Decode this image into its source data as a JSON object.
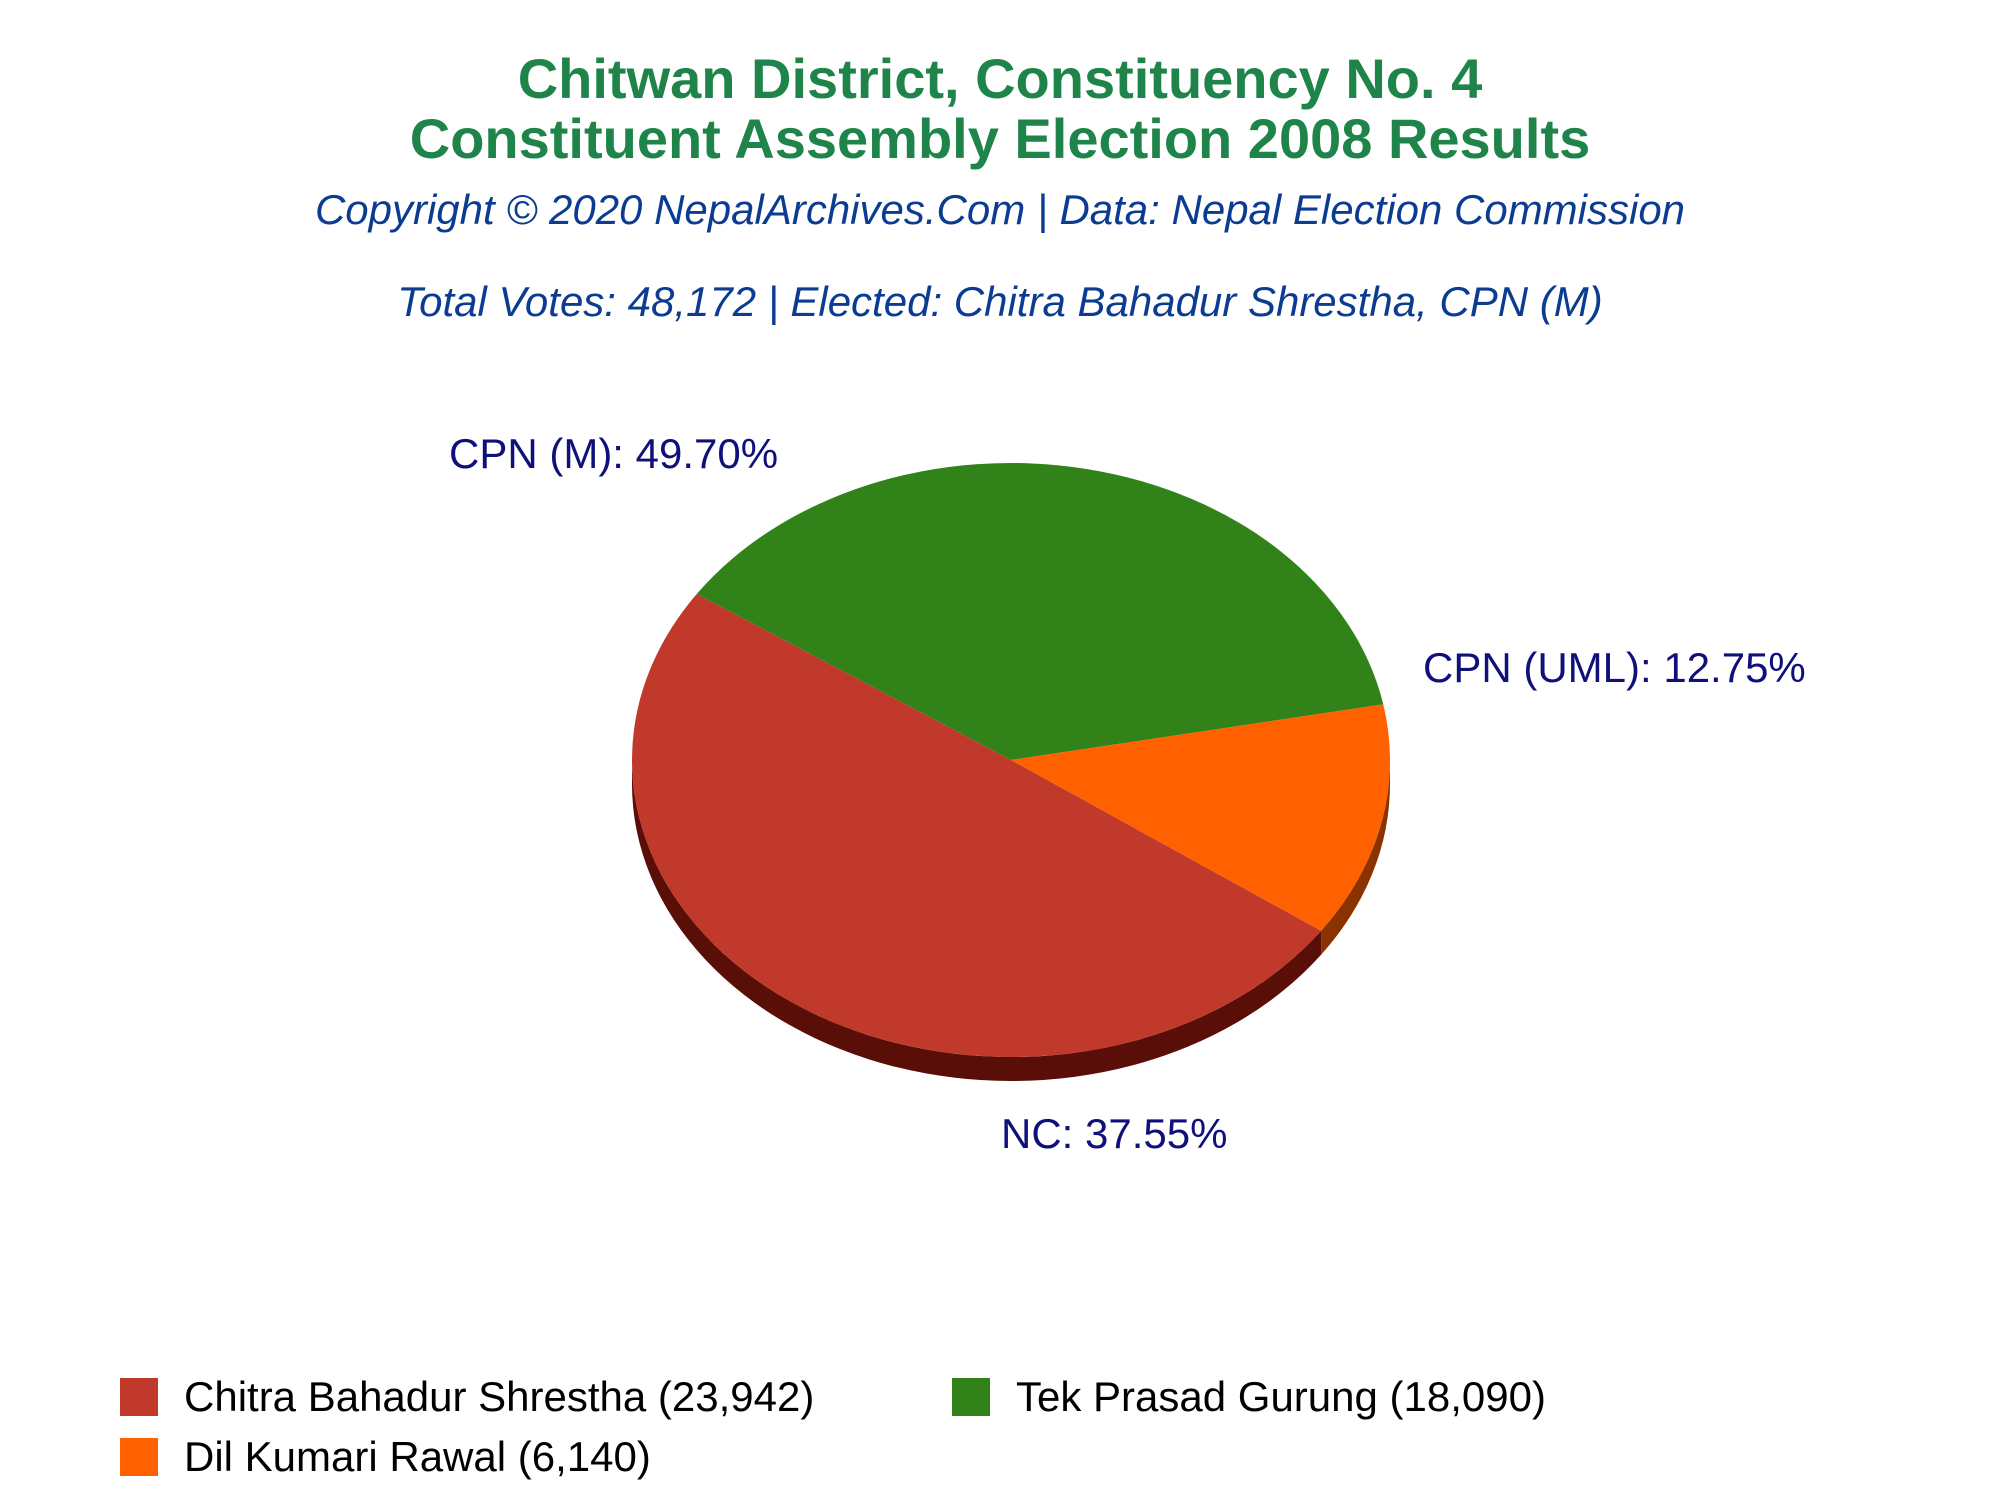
{
  "header": {
    "title_line1": "Chitwan District, Constituency No. 4",
    "title_line2": "Constituent Assembly Election 2008 Results",
    "copyright": "Copyright © 2020 NepalArchives.Com | Data: Nepal Election Commission",
    "summary": "Total Votes: 48,172 | Elected: Chitra Bahadur Shrestha, CPN (M)"
  },
  "chart_data": {
    "type": "pie",
    "style": "3d",
    "slices": [
      {
        "label": "CPN (M): 49.70%",
        "party": "CPN (M)",
        "percent": 49.7,
        "color": "#c0392b",
        "side_color": "#5a0e08"
      },
      {
        "label": "NC: 37.55%",
        "party": "NC",
        "percent": 37.55,
        "color": "#318219",
        "side_color": "#082805"
      },
      {
        "label": "CPN (UML): 12.75%",
        "party": "CPN (UML)",
        "percent": 12.75,
        "color": "#ff6100",
        "side_color": "#8a3300"
      }
    ],
    "legend": [
      {
        "label": "Chitra Bahadur Shrestha (23,942)",
        "color": "#c0392b"
      },
      {
        "label": "Tek Prasad Gurung (18,090)",
        "color": "#318219"
      },
      {
        "label": "Dil Kumari Rawal (6,140)",
        "color": "#ff6100"
      }
    ],
    "legend_position": "bottom"
  }
}
